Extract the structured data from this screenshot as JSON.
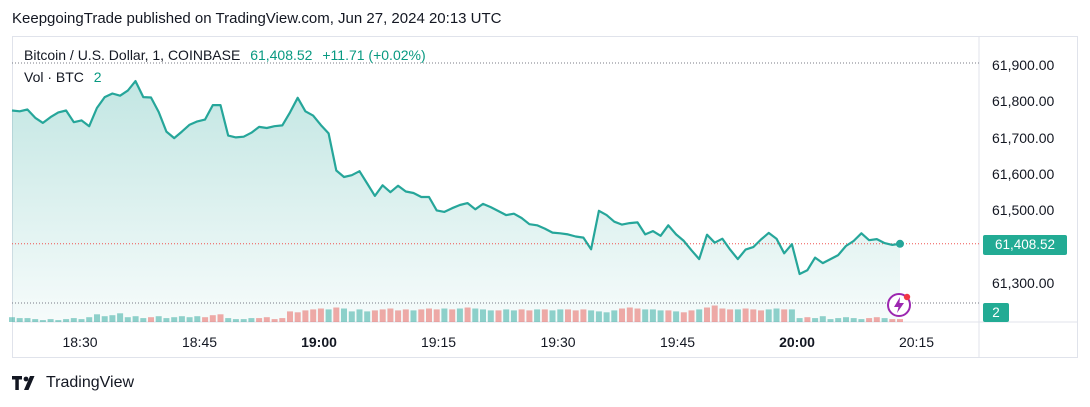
{
  "header": {
    "text": "KeepgoingTrade published on TradingView.com, Jun 27, 2024 20:13 UTC"
  },
  "legend": {
    "symbol": "Bitcoin / U.S. Dollar, 1, COINBASE",
    "last": "61,408.52",
    "change": "+11.71 (+0.02%)",
    "vol_label": "Vol · BTC",
    "vol_value": "2"
  },
  "badges": {
    "price": "61,408.52",
    "volume": "2"
  },
  "footer": {
    "brand": "TradingView"
  },
  "colors": {
    "line": "#26a69a",
    "area": "#26a69a",
    "vol_up": "#26a69a",
    "vol_down": "#ef5350",
    "badge": "#22ab94",
    "grid": "#e0e3eb"
  },
  "chart_data": {
    "type": "area",
    "yticks": [
      "61,900.00",
      "61,800.00",
      "61,700.00",
      "61,600.00",
      "61,500.00",
      "61,300.00"
    ],
    "ytick_values": [
      61900,
      61800,
      61700,
      61600,
      61500,
      61300
    ],
    "ylim": [
      61245,
      61950
    ],
    "xticks": [
      {
        "label": "18:30",
        "bold": false,
        "min": 30
      },
      {
        "label": "18:45",
        "bold": false,
        "min": 45
      },
      {
        "label": "19:00",
        "bold": true,
        "min": 60
      },
      {
        "label": "19:15",
        "bold": false,
        "min": 75
      },
      {
        "label": "19:30",
        "bold": false,
        "min": 90
      },
      {
        "label": "19:45",
        "bold": false,
        "min": 105
      },
      {
        "label": "20:00",
        "bold": true,
        "min": 120
      },
      {
        "label": "20:15",
        "bold": false,
        "min": 135
      }
    ],
    "x_start_min": 17,
    "price": [
      61775,
      61773,
      61778,
      61755,
      61741,
      61757,
      61770,
      61775,
      61743,
      61748,
      61732,
      61782,
      61812,
      61822,
      61816,
      61830,
      61856,
      61812,
      61811,
      61771,
      61717,
      61699,
      61717,
      61736,
      61745,
      61750,
      61790,
      61790,
      61706,
      61701,
      61703,
      61714,
      61730,
      61727,
      61732,
      61734,
      61770,
      61810,
      61773,
      61761,
      61735,
      61712,
      61610,
      61592,
      61597,
      61608,
      61574,
      61540,
      61569,
      61550,
      61568,
      61552,
      61548,
      61537,
      61537,
      61500,
      61496,
      61506,
      61515,
      61520,
      61503,
      61518,
      61509,
      61498,
      61487,
      61491,
      61479,
      61462,
      61459,
      61450,
      61439,
      61437,
      61434,
      61428,
      61425,
      61393,
      61499,
      61487,
      61469,
      61461,
      61465,
      61467,
      61434,
      61443,
      61430,
      61459,
      61434,
      61416,
      61390,
      61366,
      61433,
      61411,
      61422,
      61392,
      61366,
      61392,
      61399,
      61420,
      61438,
      61422,
      61382,
      61407,
      61325,
      61335,
      61370,
      61355,
      61366,
      61377,
      61402,
      61416,
      61437,
      61418,
      61421,
      61410,
      61405,
      61408
    ],
    "volume": [
      [
        5,
        1
      ],
      [
        4,
        1
      ],
      [
        4,
        1
      ],
      [
        3,
        1
      ],
      [
        2,
        1
      ],
      [
        3,
        1
      ],
      [
        2,
        1
      ],
      [
        3,
        1
      ],
      [
        4,
        1
      ],
      [
        3,
        1
      ],
      [
        5,
        1
      ],
      [
        8,
        1
      ],
      [
        6,
        1
      ],
      [
        7,
        1
      ],
      [
        9,
        1
      ],
      [
        5,
        1
      ],
      [
        6,
        1
      ],
      [
        4,
        1
      ],
      [
        5,
        0
      ],
      [
        6,
        1
      ],
      [
        4,
        1
      ],
      [
        5,
        1
      ],
      [
        6,
        1
      ],
      [
        5,
        1
      ],
      [
        6,
        1
      ],
      [
        5,
        0
      ],
      [
        7,
        0
      ],
      [
        8,
        0
      ],
      [
        4,
        1
      ],
      [
        3,
        1
      ],
      [
        3,
        1
      ],
      [
        4,
        1
      ],
      [
        4,
        0
      ],
      [
        5,
        0
      ],
      [
        3,
        0
      ],
      [
        4,
        0
      ],
      [
        11,
        0
      ],
      [
        10,
        0
      ],
      [
        12,
        0
      ],
      [
        13,
        0
      ],
      [
        14,
        0
      ],
      [
        13,
        1
      ],
      [
        15,
        0
      ],
      [
        14,
        1
      ],
      [
        11,
        1
      ],
      [
        13,
        1
      ],
      [
        11,
        1
      ],
      [
        12,
        0
      ],
      [
        13,
        0
      ],
      [
        14,
        0
      ],
      [
        12,
        0
      ],
      [
        13,
        0
      ],
      [
        12,
        1
      ],
      [
        13,
        0
      ],
      [
        14,
        0
      ],
      [
        13,
        0
      ],
      [
        14,
        1
      ],
      [
        13,
        0
      ],
      [
        14,
        1
      ],
      [
        15,
        0
      ],
      [
        14,
        1
      ],
      [
        13,
        1
      ],
      [
        12,
        1
      ],
      [
        12,
        0
      ],
      [
        13,
        1
      ],
      [
        12,
        1
      ],
      [
        13,
        0
      ],
      [
        12,
        0
      ],
      [
        13,
        1
      ],
      [
        13,
        0
      ],
      [
        12,
        1
      ],
      [
        13,
        1
      ],
      [
        13,
        0
      ],
      [
        12,
        0
      ],
      [
        13,
        0
      ],
      [
        12,
        1
      ],
      [
        11,
        1
      ],
      [
        10,
        1
      ],
      [
        12,
        1
      ],
      [
        14,
        0
      ],
      [
        15,
        0
      ],
      [
        14,
        0
      ],
      [
        13,
        1
      ],
      [
        13,
        1
      ],
      [
        12,
        1
      ],
      [
        12,
        0
      ],
      [
        11,
        1
      ],
      [
        10,
        0
      ],
      [
        12,
        0
      ],
      [
        13,
        1
      ],
      [
        15,
        0
      ],
      [
        17,
        0
      ],
      [
        14,
        0
      ],
      [
        13,
        0
      ],
      [
        13,
        1
      ],
      [
        14,
        0
      ],
      [
        13,
        0
      ],
      [
        12,
        0
      ],
      [
        13,
        1
      ],
      [
        14,
        1
      ],
      [
        13,
        0
      ],
      [
        13,
        1
      ],
      [
        4,
        1
      ],
      [
        5,
        0
      ],
      [
        4,
        1
      ],
      [
        6,
        1
      ],
      [
        3,
        1
      ],
      [
        4,
        1
      ],
      [
        5,
        1
      ],
      [
        4,
        1
      ],
      [
        3,
        1
      ],
      [
        4,
        0
      ],
      [
        5,
        0
      ],
      [
        4,
        1
      ],
      [
        3,
        0
      ],
      [
        3,
        0
      ]
    ],
    "volume_max": 62
  }
}
